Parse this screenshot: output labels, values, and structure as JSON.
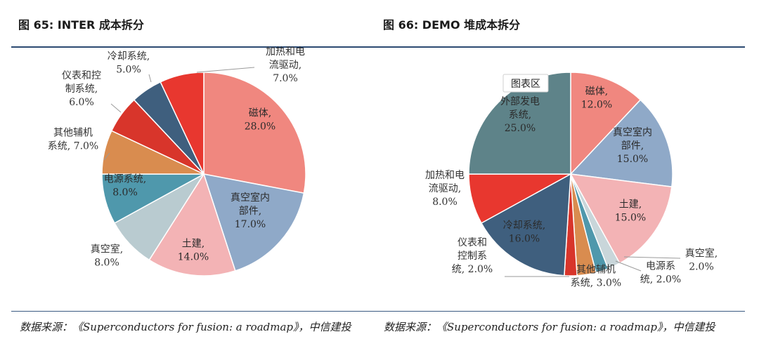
{
  "header": {
    "left_title": "图 65: INTER 成本拆分",
    "right_title": "图 66: DEMO 堆成本拆分"
  },
  "footer": {
    "left_source": "数据来源：《Superconductors for fusion: a roadmap》，中信建投",
    "right_source": "数据来源：《Superconductors for fusion: a roadmap》，中信建投"
  },
  "chart_tooltip": "图表区",
  "chart_data": [
    {
      "type": "pie",
      "title": "图 65: INTER 成本拆分",
      "slices": [
        {
          "label": [
            "磁体,",
            "28.0%"
          ],
          "value": 28.0,
          "color": "#f0877f"
        },
        {
          "label": [
            "真空室内",
            "部件,",
            "17.0%"
          ],
          "value": 17.0,
          "color": "#8fa9c8"
        },
        {
          "label": [
            "土建,",
            "14.0%"
          ],
          "value": 14.0,
          "color": "#f3b3b5"
        },
        {
          "label": [
            "真空室,",
            "8.0%"
          ],
          "value": 8.0,
          "color": "#b9cbd0"
        },
        {
          "label": [
            "电源系统,",
            "8.0%"
          ],
          "value": 8.0,
          "color": "#4f98ac"
        },
        {
          "label": [
            "其他辅机",
            "系统, 7.0%"
          ],
          "value": 7.0,
          "color": "#d98c4f"
        },
        {
          "label": [
            "仪表和控",
            "制系统,",
            "6.0%"
          ],
          "value": 6.0,
          "color": "#d8352b"
        },
        {
          "label": [
            "冷却系统,",
            "5.0%"
          ],
          "value": 5.0,
          "color": "#3f5f7e"
        },
        {
          "label": [
            "加热和电",
            "流驱动,",
            "7.0%"
          ],
          "value": 7.0,
          "color": "#e8372f"
        }
      ]
    },
    {
      "type": "pie",
      "title": "图 66: DEMO 堆成本拆分",
      "slices": [
        {
          "label": [
            "磁体,",
            "12.0%"
          ],
          "value": 12.0,
          "color": "#f0877f"
        },
        {
          "label": [
            "真空室内",
            "部件,",
            "15.0%"
          ],
          "value": 15.0,
          "color": "#8fa9c8"
        },
        {
          "label": [
            "土建,",
            "15.0%"
          ],
          "value": 15.0,
          "color": "#f3b3b5"
        },
        {
          "label": [
            "真空室,",
            "2.0%"
          ],
          "value": 2.0,
          "color": "#c9d6da"
        },
        {
          "label": [
            "电源系",
            "统, 2.0%"
          ],
          "value": 2.0,
          "color": "#4f98ac"
        },
        {
          "label": [
            "其他辅机",
            "系统, 3.0%"
          ],
          "value": 3.0,
          "color": "#d98c4f"
        },
        {
          "label": [
            "仪表和",
            "控制系",
            "统, 2.0%"
          ],
          "value": 2.0,
          "color": "#d8352b"
        },
        {
          "label": [
            "冷却系统,",
            "16.0%"
          ],
          "value": 16.0,
          "color": "#3f5f7e"
        },
        {
          "label": [
            "加热和电",
            "流驱动,",
            "8.0%"
          ],
          "value": 8.0,
          "color": "#e8372f"
        },
        {
          "label": [
            "外部发电",
            "系统,",
            "25.0%"
          ],
          "value": 25.0,
          "color": "#5e8389"
        }
      ]
    }
  ]
}
